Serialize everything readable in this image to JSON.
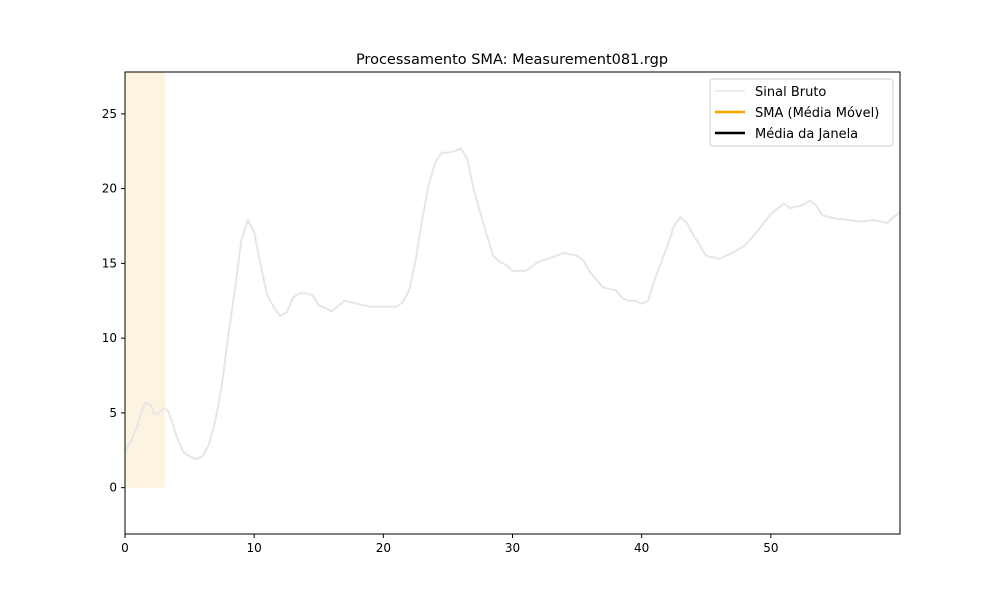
{
  "chart_data": {
    "type": "line",
    "title": "Processamento SMA: Measurement081.rgp",
    "xlabel": "",
    "ylabel": "",
    "xlim": [
      0,
      60
    ],
    "ylim": [
      -3.1,
      27.8
    ],
    "xticks": [
      0,
      10,
      20,
      30,
      40,
      50
    ],
    "yticks": [
      0,
      5,
      10,
      15,
      20,
      25
    ],
    "grid": false,
    "legend_position": "top-right",
    "highlight_span": {
      "x": [
        0,
        3.1
      ],
      "y": [
        0,
        27.8
      ],
      "color": "#fdf3e1"
    },
    "series": [
      {
        "name": "Sinal Bruto",
        "color": "#e6e6e6",
        "x": [
          0,
          0.5,
          1,
          1.3,
          1.6,
          2,
          2.3,
          2.6,
          3,
          3.3,
          3.6,
          4,
          4.5,
          5,
          5.5,
          6,
          6.5,
          7,
          7.5,
          8,
          8.5,
          9,
          9.5,
          10,
          10.5,
          11,
          11.5,
          12,
          12.5,
          13,
          13.5,
          14,
          14.5,
          15,
          16,
          17,
          18,
          19,
          20,
          21,
          21.5,
          22,
          22.5,
          23,
          23.5,
          24,
          24.5,
          25,
          25.5,
          26,
          26.5,
          27,
          27.5,
          28,
          28.5,
          29,
          29.5,
          30,
          31,
          32,
          33,
          34,
          35,
          35.5,
          36,
          37,
          38,
          38.5,
          39,
          39.5,
          40,
          40.5,
          41,
          42,
          42.5,
          43,
          43.5,
          44,
          45,
          46,
          47,
          48,
          49,
          50,
          51,
          51.5,
          52,
          52.5,
          53,
          53.5,
          54,
          55,
          56,
          57,
          58,
          59,
          59.5,
          60
        ],
        "y": [
          2.4,
          3.2,
          4.2,
          5.2,
          5.7,
          5.5,
          4.9,
          5.0,
          5.3,
          5.2,
          4.5,
          3.4,
          2.4,
          2.1,
          1.9,
          2.1,
          2.9,
          4.5,
          6.9,
          10.2,
          13.2,
          16.5,
          17.9,
          17.1,
          14.9,
          12.9,
          12.1,
          11.5,
          11.7,
          12.7,
          13.0,
          13.0,
          12.9,
          12.2,
          11.8,
          12.5,
          12.3,
          12.1,
          12.1,
          12.1,
          12.4,
          13.2,
          15.2,
          17.9,
          20.2,
          21.7,
          22.4,
          22.4,
          22.5,
          22.7,
          22.0,
          19.9,
          18.4,
          16.9,
          15.5,
          15.1,
          14.9,
          14.5,
          14.5,
          15.1,
          15.4,
          15.7,
          15.5,
          15.2,
          14.4,
          13.4,
          13.2,
          12.7,
          12.5,
          12.5,
          12.3,
          12.5,
          13.9,
          16.2,
          17.5,
          18.1,
          17.7,
          16.9,
          15.5,
          15.3,
          15.7,
          16.2,
          17.2,
          18.3,
          19.0,
          18.7,
          18.8,
          18.9,
          19.2,
          18.9,
          18.2,
          18.0,
          17.9,
          17.8,
          17.9,
          17.7,
          18.1,
          18.4
        ]
      },
      {
        "name": "SMA (Média Móvel)",
        "color": "#ff9f00",
        "x": [],
        "y": []
      },
      {
        "name": "Média da Janela",
        "color": "#000000",
        "x": [],
        "y": []
      }
    ]
  }
}
